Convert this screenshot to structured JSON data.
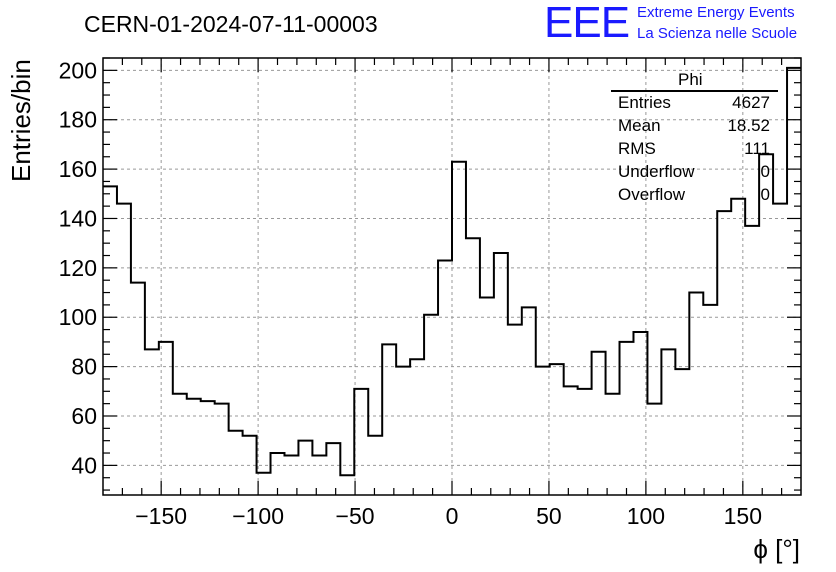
{
  "header": {
    "title": "CERN-01-2024-07-11-00003",
    "logo_text": "EEE",
    "org_line1": "Extreme Energy Events",
    "org_line2": "La Scienza nelle Scuole"
  },
  "stats": {
    "title": "Phi",
    "rows": [
      {
        "name": "Entries",
        "value": "4627"
      },
      {
        "name": "Mean",
        "value": "18.52"
      },
      {
        "name": "RMS",
        "value": "111"
      },
      {
        "name": "Underflow",
        "value": "0"
      },
      {
        "name": "Overflow",
        "value": "0"
      }
    ]
  },
  "colors": {
    "line": "#000000",
    "grid": "#999999",
    "brand": "#1a1aff"
  },
  "chart_data": {
    "type": "bar",
    "subtype": "histogram-step",
    "xlabel": "ϕ [°]",
    "ylabel": "Entries/bin",
    "xlim": [
      -180,
      180
    ],
    "ylim": [
      28,
      205
    ],
    "bin_width": 7.2,
    "x_ticks": [
      -150,
      -100,
      -50,
      0,
      50,
      100,
      150
    ],
    "x_tick_labels": [
      "−150",
      "−100",
      "−50",
      "0",
      "50",
      "100",
      "150"
    ],
    "y_ticks": [
      40,
      60,
      80,
      100,
      120,
      140,
      160,
      180,
      200
    ],
    "y_tick_labels": [
      "40",
      "60",
      "80",
      "100",
      "120",
      "140",
      "160",
      "180",
      "200"
    ],
    "grid": true,
    "values": [
      153,
      146,
      114,
      87,
      90,
      69,
      67,
      66,
      65,
      54,
      52,
      37,
      45,
      44,
      50,
      44,
      49,
      36,
      71,
      52,
      89,
      80,
      83,
      101,
      123,
      163,
      132,
      108,
      126,
      97,
      104,
      80,
      81,
      72,
      71,
      86,
      69,
      90,
      94,
      65,
      87,
      79,
      110,
      105,
      143,
      148,
      137,
      166,
      146,
      201
    ]
  }
}
